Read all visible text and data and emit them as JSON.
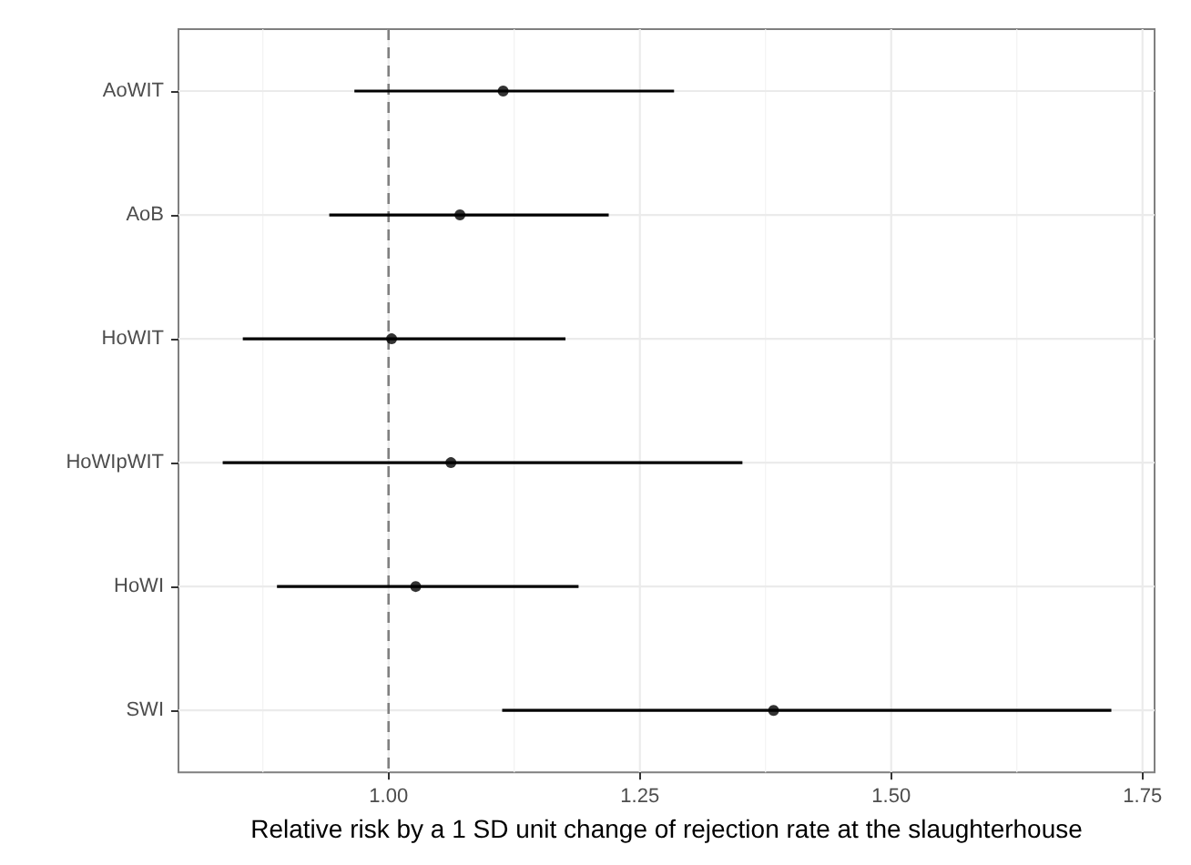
{
  "chart_data": {
    "type": "scatter",
    "orientation": "horizontal",
    "xlabel": "Relative risk by a 1 SD unit change of rejection rate at the slaughterhouse",
    "categories": [
      "AoWIT",
      "AoB",
      "HoWIT",
      "HoWIpWIT",
      "HoWI",
      "SWI"
    ],
    "values": [
      1.114,
      1.071,
      1.003,
      1.062,
      1.027,
      1.383
    ],
    "errors": [
      [
        0.966,
        1.284
      ],
      [
        0.941,
        1.219
      ],
      [
        0.855,
        1.176
      ],
      [
        0.835,
        1.352
      ],
      [
        0.889,
        1.189
      ],
      [
        1.113,
        1.719
      ]
    ],
    "color": "#000000",
    "xlim": [
      0.791,
      1.762
    ],
    "xticks": [
      {
        "value": 1,
        "label": "1.00"
      },
      1.25,
      {
        "value": 1.5,
        "label": "1.50"
      },
      1.75
    ],
    "ref_lines": [
      {
        "axis": "x",
        "value": 1,
        "color": "#808080",
        "line_style": "dashed"
      }
    ],
    "grid": true,
    "marker": "circle"
  }
}
